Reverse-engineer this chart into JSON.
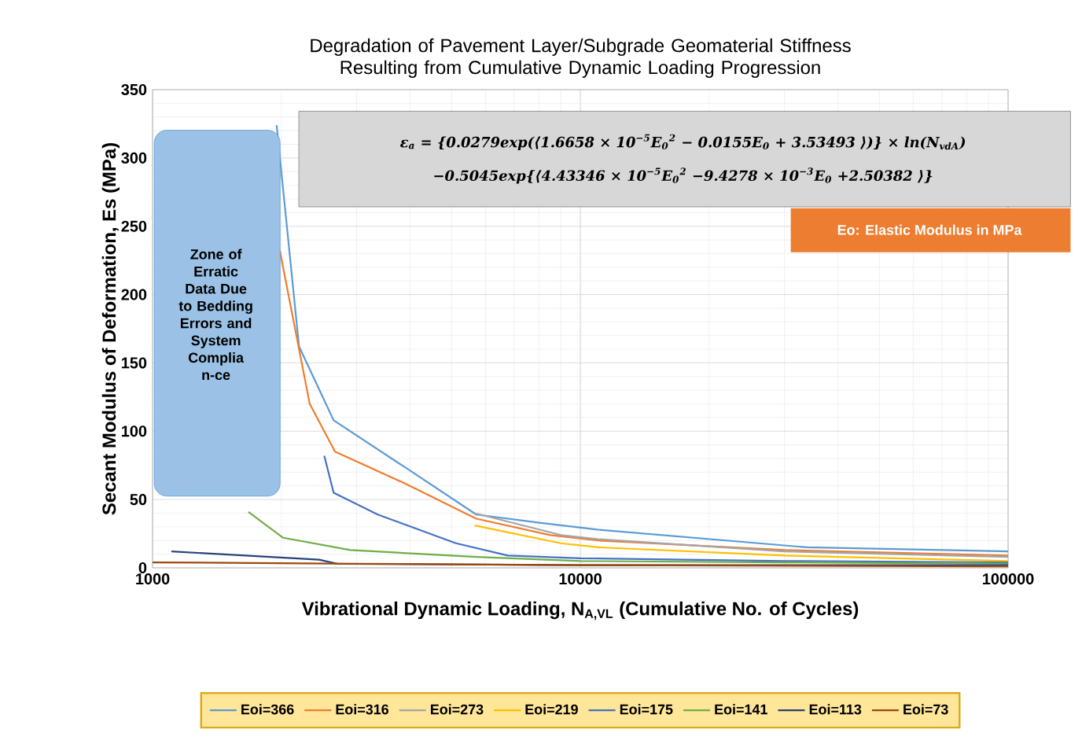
{
  "chart_data": {
    "type": "line",
    "title": "Degradation of  Pavement Layer/Subgrade Geomaterial Stiffness Resulting from Cumulative Dynamic Loading Progression",
    "xlabel": "Vibrational Dynamic Loading, N$_{A,VL}$ (Cumulative No. of Cycles)",
    "ylabel": "Secant Modulus of Deformation, Es (MPa)",
    "log": "x",
    "xlim": [
      1000,
      100000
    ],
    "xticks": [
      1000,
      10000,
      100000
    ],
    "ylim": [
      0,
      350
    ],
    "yticks": [
      0,
      50,
      100,
      150,
      200,
      250,
      300,
      350
    ],
    "grid": true,
    "legend": "bottom",
    "marker": "none",
    "line_style": "solid",
    "annotations": [
      "Zone of Erratic Data Due to Bedding Errors and System Complia n-ce",
      "ε$_{a}$ = {0.0279exp(⟨1.6658 × 10$^{−5}$E$_{0}$$^{2}$ − 0.0155E$_{0}$ + 3.53493 ⟩)} × ln(N$_{vdA}$)",
      "−0.5045exp{⟨4.43346 × 10$^{−5}$E$_{0}$$^{2}$ −9.4278 × 10$^{−3}$E$_{0}$ +2.50382 ⟩}",
      "Eo: Elastic Modulus in MPa"
    ],
    "series": [
      {
        "name": "Eoi=366",
        "color": "#5b9bd5",
        "x": [
          1950,
          2200,
          2650,
          3875,
          5710,
          8010,
          10960,
          33900,
          100000
        ],
        "values": [
          324,
          162,
          108,
          74,
          39,
          33,
          28,
          15,
          12
        ]
      },
      {
        "name": "Eoi=316",
        "color": "#ed7d31",
        "x": [
          1985,
          2330,
          2670,
          3875,
          5710,
          8500,
          11000,
          30000,
          100000
        ],
        "values": [
          232,
          120,
          85,
          62,
          36,
          24,
          20,
          13,
          9
        ]
      },
      {
        "name": "Eoi=273",
        "color": "#a5a5a5",
        "x": [
          5660,
          9000,
          11000,
          30000,
          100000
        ],
        "values": [
          40,
          24,
          21,
          12,
          8
        ]
      },
      {
        "name": "Eoi=219",
        "color": "#ffc000",
        "x": [
          5660,
          9000,
          11000,
          30000,
          100000
        ],
        "values": [
          31,
          18,
          15,
          9,
          5
        ]
      },
      {
        "name": "Eoi=175",
        "color": "#4472c4",
        "x": [
          2520,
          2650,
          3360,
          5120,
          6770,
          10000,
          30000,
          100000
        ],
        "values": [
          82,
          55,
          39,
          18,
          9,
          7,
          5,
          4
        ]
      },
      {
        "name": "Eoi=141",
        "color": "#70ad47",
        "x": [
          1675,
          2020,
          2900,
          5710,
          10000,
          30000,
          100000
        ],
        "values": [
          41,
          22,
          13,
          8,
          5,
          4,
          3
        ]
      },
      {
        "name": "Eoi=113",
        "color": "#264478",
        "x": [
          1107,
          2450,
          2700,
          10000,
          100000
        ],
        "values": [
          12,
          6,
          3,
          2,
          2
        ]
      },
      {
        "name": "Eoi=73",
        "color": "#9e480e",
        "x": [
          1000,
          3000,
          10000,
          100000
        ],
        "values": [
          4,
          3,
          2,
          1
        ]
      }
    ]
  }
}
